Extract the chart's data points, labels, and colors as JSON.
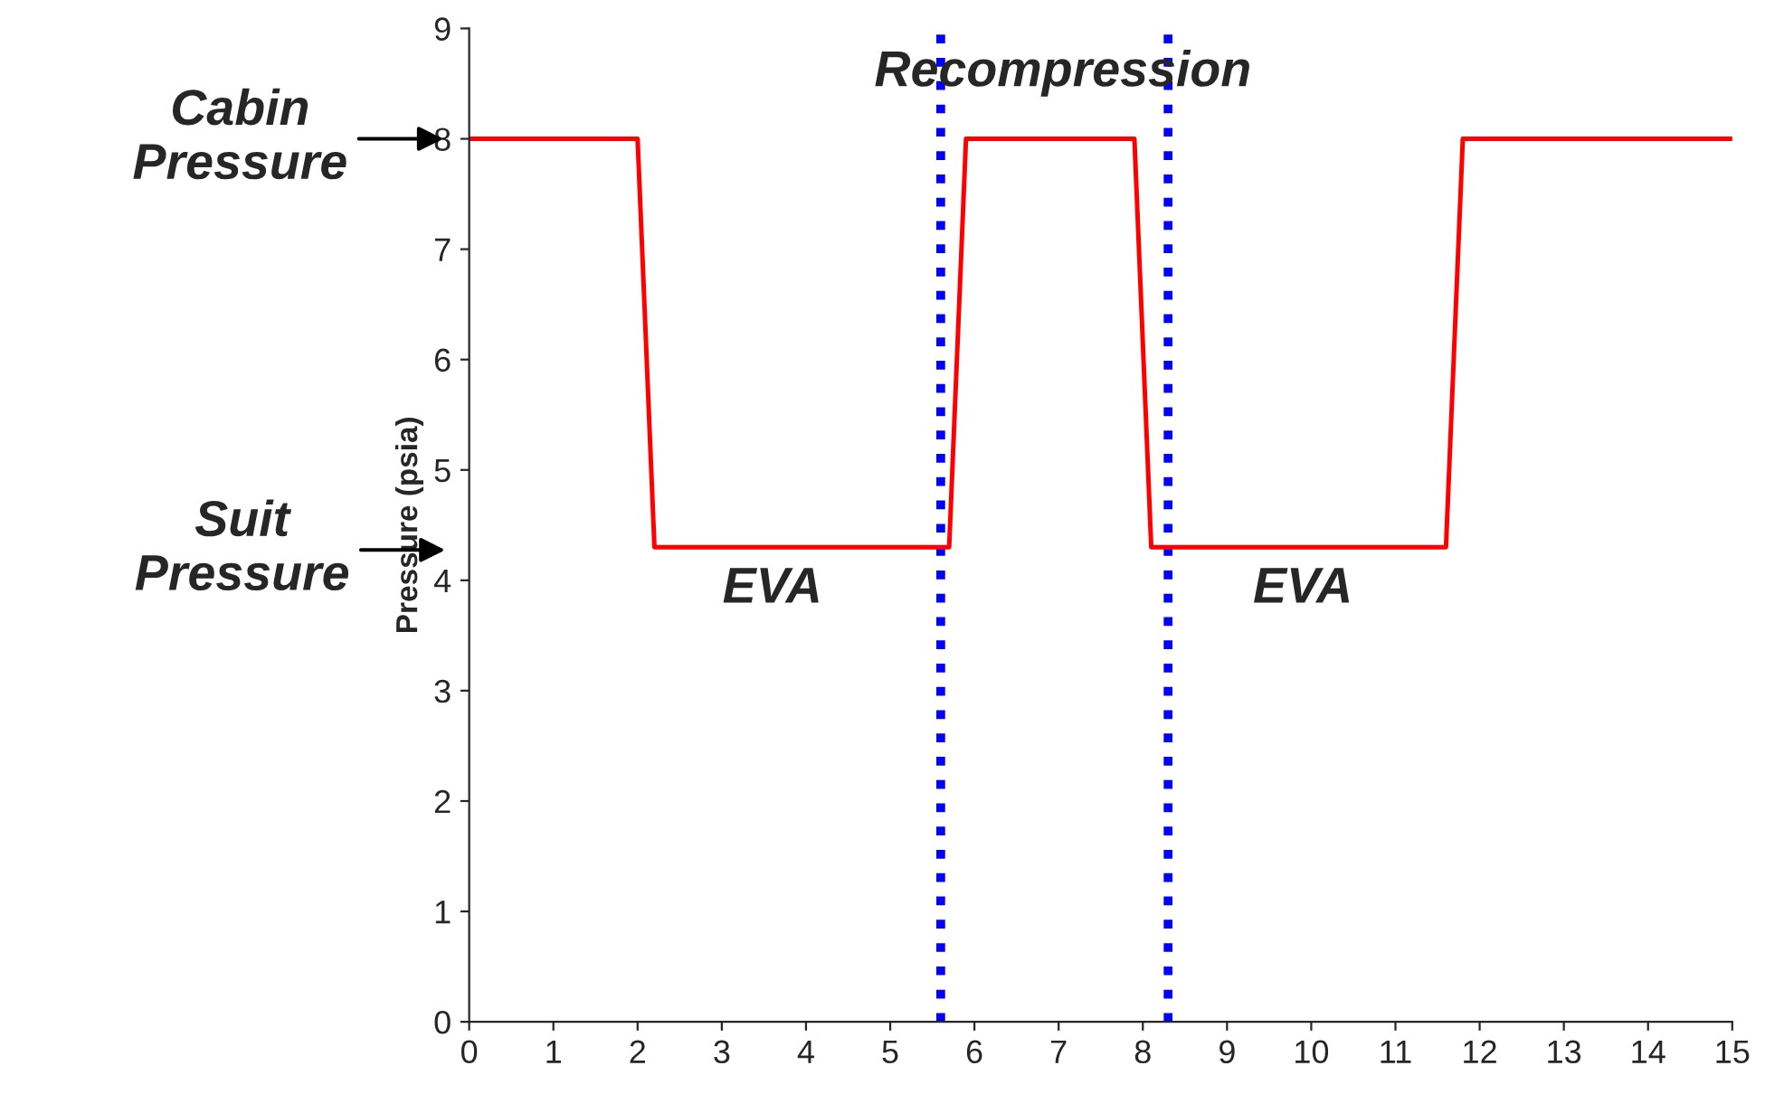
{
  "chart_data": {
    "type": "line",
    "ylabel": "Pressure (psia)",
    "x": [
      0,
      2.0,
      2.2,
      5.7,
      5.9,
      7.9,
      8.1,
      11.6,
      11.8,
      15
    ],
    "series": [
      {
        "color": "#ff0000",
        "values": [
          8,
          8,
          4.3,
          4.3,
          8,
          8,
          4.3,
          4.3,
          8,
          8
        ]
      }
    ],
    "xlim": [
      0,
      15
    ],
    "xticks": [
      0,
      1,
      2,
      3,
      4,
      5,
      6,
      7,
      8,
      9,
      10,
      11,
      12,
      13,
      14,
      15
    ],
    "ylim": [
      0,
      9
    ],
    "yticks": [
      0,
      1,
      2,
      3,
      4,
      5,
      6,
      7,
      8,
      9
    ],
    "grid": false,
    "legend": false,
    "marker": "none",
    "line_style": "solid",
    "ref_lines": [
      {
        "axis": "x",
        "value": 5.6,
        "color": "#0000ff",
        "line_style": "dotted"
      },
      {
        "axis": "x",
        "value": 8.3,
        "color": "#0000ff",
        "line_style": "dotted"
      }
    ],
    "annotations": [
      {
        "text": "Cabin\nPressure",
        "x": 0,
        "y": 8
      },
      "Suit\nPressure",
      "EVA",
      "EVA",
      "Recompression"
    ]
  }
}
